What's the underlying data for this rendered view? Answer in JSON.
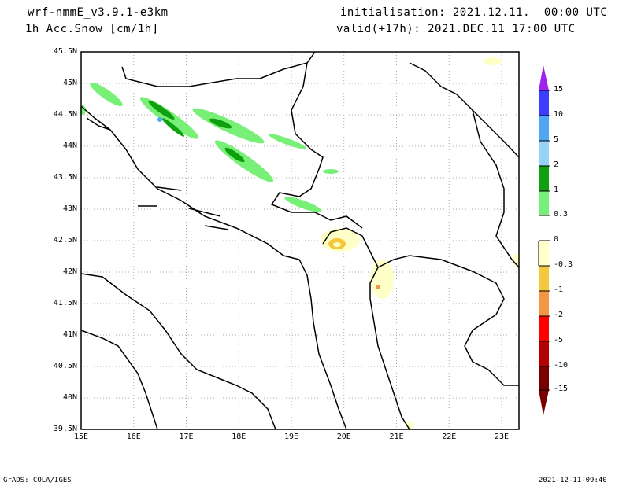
{
  "header": {
    "model": "wrf-nmmE_v3.9.1-e3km",
    "variable": "1h Acc.Snow [cm/1h]",
    "init": "initialisation: 2021.12.11.  00:00 UTC",
    "valid": "valid(+17h): 2021.DEC.11 17:00 UTC"
  },
  "map": {
    "lat_labels": [
      "45.5N",
      "45N",
      "44.5N",
      "44N",
      "43.5N",
      "43N",
      "42.5N",
      "42N",
      "41.5N",
      "41N",
      "40.5N",
      "40N",
      "39.5N"
    ],
    "lon_labels": [
      "15E",
      "16E",
      "17E",
      "18E",
      "19E",
      "20E",
      "21E",
      "22E",
      "23E"
    ],
    "lat_range": [
      39.5,
      45.5
    ],
    "lon_range": [
      15,
      23.33
    ]
  },
  "colorbar": {
    "labels": [
      "15",
      "10",
      "5",
      "2",
      "1",
      "0.3",
      "0",
      "-0.3",
      "-1",
      "-2",
      "-5",
      "-10",
      "-15"
    ],
    "colors": [
      "#a020f0",
      "#3c3cff",
      "#50a5f5",
      "#96d2fa",
      "#0fa00f",
      "#78f078",
      "#ffffff",
      "#ffffff",
      "#ffffc8",
      "#f5c83c",
      "#f59646",
      "#ff0000",
      "#b40000",
      "#780000"
    ]
  },
  "footer": {
    "left": "GrADS: COLA/IGES",
    "right": "2021-12-11-09:40"
  }
}
